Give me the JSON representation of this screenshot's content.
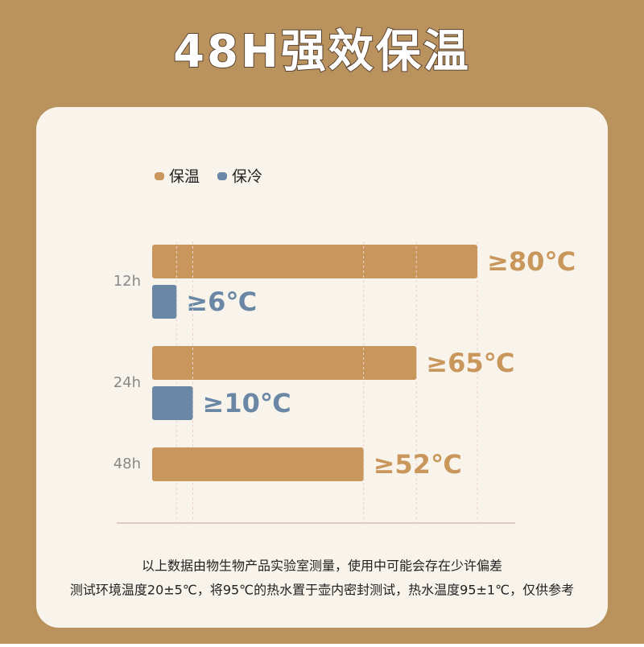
{
  "chart_data": {
    "type": "bar",
    "orientation": "horizontal",
    "title": "48H强效保温",
    "categories": [
      "12h",
      "24h",
      "48h"
    ],
    "series": [
      {
        "name": "保温",
        "color": "#c9975b",
        "values": [
          80,
          65,
          52
        ],
        "value_labels": [
          "≥80℃",
          "≥65℃",
          "≥52℃"
        ]
      },
      {
        "name": "保冷",
        "color": "#6a87a6",
        "values": [
          6,
          10,
          null
        ],
        "value_labels": [
          "≥6℃",
          "≥10℃",
          null
        ]
      }
    ],
    "xlim": [
      0,
      80
    ],
    "legend": "top-left",
    "notes": [
      "以上数据由物生物产品实验室测量，使用中可能会存在少许偏差",
      "测试环境温度20±5℃，将95℃的热水置于壶内密封测试，热水温度95±1℃，仅供参考"
    ]
  }
}
